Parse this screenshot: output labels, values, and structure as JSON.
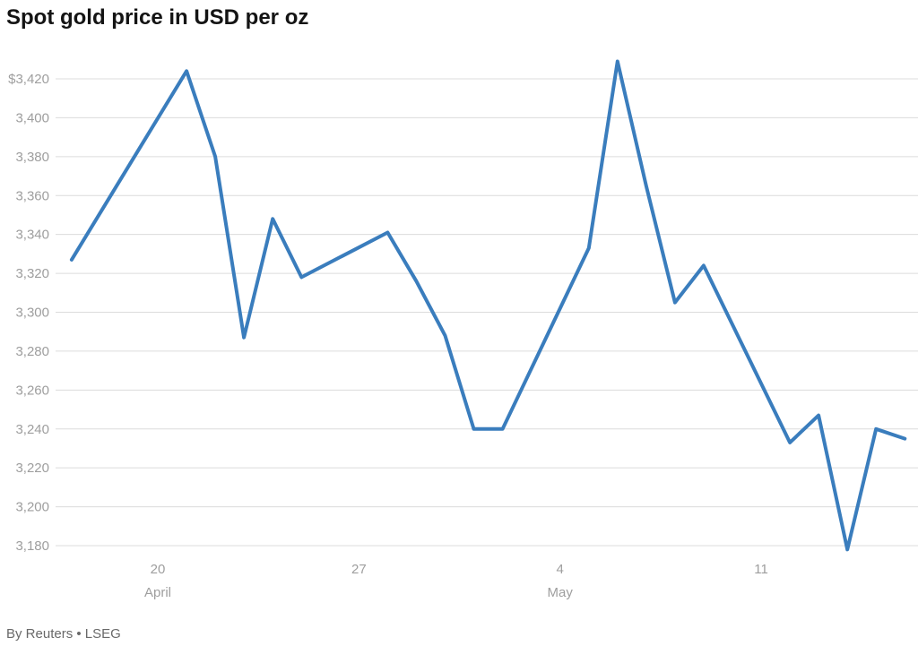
{
  "title": "Spot gold price in USD per oz",
  "source": "By Reuters • LSEG",
  "chart_data": {
    "type": "line",
    "title": "Spot gold price in USD per oz",
    "xlabel": "",
    "ylabel": "USD per oz",
    "ylim": [
      3170,
      3434
    ],
    "grid": true,
    "legend": "none",
    "colors": {
      "line": "#3a7dbd",
      "grid": "#dcdcdc",
      "tick_label": "#9e9e9e",
      "title": "#141414",
      "source": "#696969"
    },
    "y_ticks": [
      {
        "value": 3180,
        "label": "3,180"
      },
      {
        "value": 3200,
        "label": "3,200"
      },
      {
        "value": 3220,
        "label": "3,220"
      },
      {
        "value": 3240,
        "label": "3,240"
      },
      {
        "value": 3260,
        "label": "3,260"
      },
      {
        "value": 3280,
        "label": "3,280"
      },
      {
        "value": 3300,
        "label": "3,300"
      },
      {
        "value": 3320,
        "label": "3,320"
      },
      {
        "value": 3340,
        "label": "3,340"
      },
      {
        "value": 3360,
        "label": "3,360"
      },
      {
        "value": 3380,
        "label": "3,380"
      },
      {
        "value": 3400,
        "label": "3,400"
      },
      {
        "value": 3420,
        "label": "$3,420"
      }
    ],
    "x_ticks": [
      {
        "day": 0,
        "label": "20",
        "month": "April"
      },
      {
        "day": 7,
        "label": "27",
        "month": ""
      },
      {
        "day": 14,
        "label": "4",
        "month": "May"
      },
      {
        "day": 21,
        "label": "11",
        "month": ""
      }
    ],
    "series": [
      {
        "name": "Spot gold price (USD/oz)",
        "color": "#3a7dbd",
        "points": [
          {
            "date": "Apr 17",
            "day": -3,
            "value": 3327
          },
          {
            "date": "Apr 21",
            "day": 1,
            "value": 3424
          },
          {
            "date": "Apr 22",
            "day": 2,
            "value": 3380
          },
          {
            "date": "Apr 23",
            "day": 3,
            "value": 3287
          },
          {
            "date": "Apr 24",
            "day": 4,
            "value": 3348
          },
          {
            "date": "Apr 25",
            "day": 5,
            "value": 3318
          },
          {
            "date": "Apr 28",
            "day": 8,
            "value": 3341
          },
          {
            "date": "Apr 29",
            "day": 9,
            "value": 3316
          },
          {
            "date": "Apr 30",
            "day": 10,
            "value": 3288
          },
          {
            "date": "May 1",
            "day": 11,
            "value": 3240
          },
          {
            "date": "May 2",
            "day": 12,
            "value": 3240
          },
          {
            "date": "May 5",
            "day": 15,
            "value": 3333
          },
          {
            "date": "May 6",
            "day": 16,
            "value": 3429
          },
          {
            "date": "May 7",
            "day": 17,
            "value": 3365
          },
          {
            "date": "May 8",
            "day": 18,
            "value": 3305
          },
          {
            "date": "May 9",
            "day": 19,
            "value": 3324
          },
          {
            "date": "May 12",
            "day": 22,
            "value": 3233
          },
          {
            "date": "May 13",
            "day": 23,
            "value": 3247
          },
          {
            "date": "May 14",
            "day": 24,
            "value": 3178
          },
          {
            "date": "May 15",
            "day": 25,
            "value": 3240
          },
          {
            "date": "May 16",
            "day": 26,
            "value": 3235
          }
        ]
      }
    ]
  }
}
